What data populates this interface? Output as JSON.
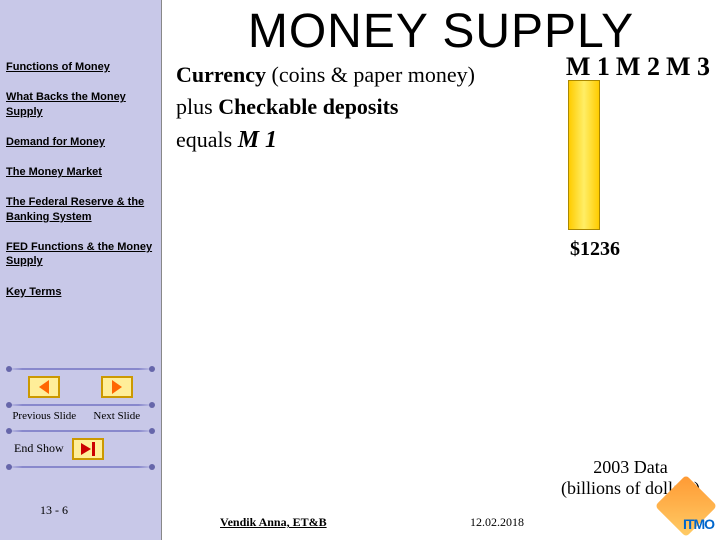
{
  "title": "MONEY SUPPLY",
  "sidebar": {
    "links": [
      "Functions of Money",
      "What Backs the Money Supply",
      "Demand for Money",
      "The Money Market",
      "The Federal Reserve & the Banking System",
      "FED Functions & the Money Supply",
      "Key Terms"
    ],
    "prev_label": "Previous Slide",
    "next_label": "Next Slide",
    "end_label": "End Show",
    "slide_number": "13 - 6"
  },
  "content": {
    "line1_bold": "Currency",
    "line1_rest": " (coins & paper money)",
    "line2_plain": "  plus ",
    "line2_bold": "Checkable deposits",
    "line3_plain": "equals ",
    "line3_bold": "M 1"
  },
  "chart": {
    "labels": [
      "M 1",
      "M 2",
      "M 3"
    ],
    "m1_value": "$1236",
    "bar_color": "#ffdd33",
    "caption_line1": "2003 Data",
    "caption_line2": "(billions of dollars)"
  },
  "footer": {
    "author": "Vendik Anna, ET&B",
    "date": "12.02.2018",
    "logo_text": "ITMO"
  }
}
